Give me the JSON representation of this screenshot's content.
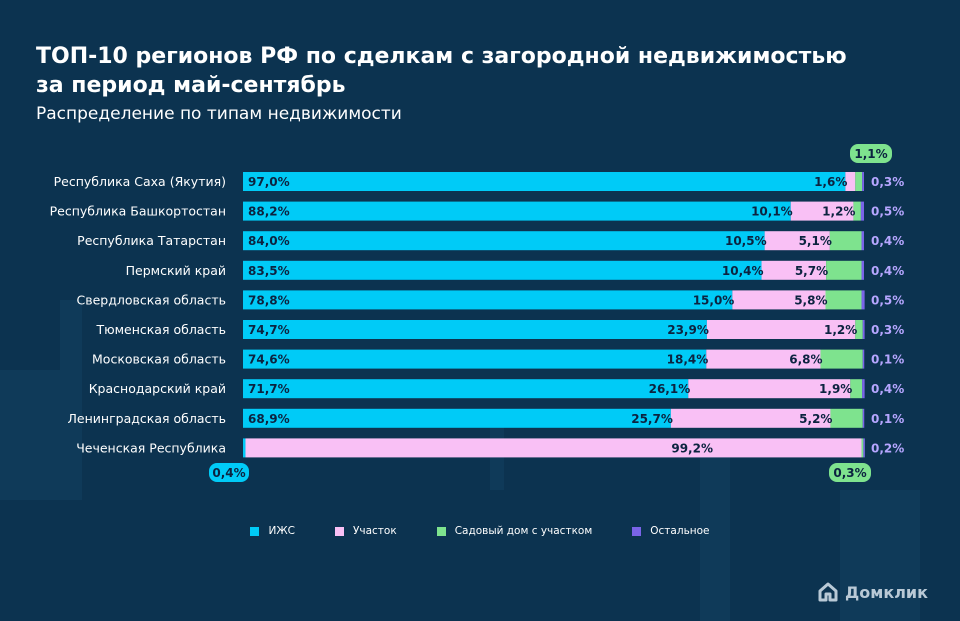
{
  "title_line1": "ТОП-10 регионов РФ по сделкам с загородной недвижимостью",
  "title_line2": "за период май-сентябрь",
  "subtitle": "Распределение по типам недвижимости",
  "brand": "Домклик",
  "colors": {
    "background": "#0c3350",
    "izhs": "#00cbf7",
    "uchastok": "#f9c0f5",
    "sad": "#7ee38e",
    "other": "#7a64e8",
    "label_dark": "#0c2340",
    "label_other": "#b6a6ff"
  },
  "legend": [
    {
      "label": "ИЖС",
      "color": "#00cbf7"
    },
    {
      "label": "Участок",
      "color": "#f9c0f5"
    },
    {
      "label": "Садовый дом с участком",
      "color": "#7ee38e"
    },
    {
      "label": "Остальное",
      "color": "#7a64e8"
    }
  ],
  "chart_data": {
    "type": "bar",
    "orientation": "horizontal",
    "stacked": true,
    "title": "ТОП-10 регионов РФ по сделкам с загородной недвижимостью за период май-сентябрь",
    "subtitle": "Распределение по типам недвижимости",
    "unit": "%",
    "categories": [
      "Республика Саха (Якутия)",
      "Республика Башкортостан",
      "Республика Татарстан",
      "Пермский край",
      "Свердловская область",
      "Тюменская область",
      "Московская область",
      "Краснодарский край",
      "Ленинградская область",
      "Чеченская Республика"
    ],
    "series": [
      {
        "name": "ИЖС",
        "values": [
          97.0,
          88.2,
          84.0,
          83.5,
          78.8,
          74.7,
          74.6,
          71.7,
          68.9,
          0.4
        ],
        "labels": [
          "97,0%",
          "88,2%",
          "84,0%",
          "83,5%",
          "78,8%",
          "74,7%",
          "74,6%",
          "71,7%",
          "68,9%",
          "0,4%"
        ]
      },
      {
        "name": "Участок",
        "values": [
          1.6,
          10.1,
          10.5,
          10.4,
          15.0,
          23.9,
          18.4,
          26.1,
          25.7,
          99.2
        ],
        "labels": [
          "1,6%",
          "10,1%",
          "10,5%",
          "10,4%",
          "15,0%",
          "23,9%",
          "18,4%",
          "26,1%",
          "25,7%",
          "99,2%"
        ]
      },
      {
        "name": "Садовый дом с участком",
        "values": [
          1.1,
          1.2,
          5.1,
          5.7,
          5.8,
          1.2,
          6.8,
          1.9,
          5.2,
          0.3
        ],
        "labels": [
          "1,1%",
          "1,2%",
          "5,1%",
          "5,7%",
          "5,8%",
          "1,2%",
          "6,8%",
          "1,9%",
          "5,2%",
          "0,3%"
        ]
      },
      {
        "name": "Остальное",
        "values": [
          0.3,
          0.5,
          0.4,
          0.4,
          0.5,
          0.3,
          0.1,
          0.4,
          0.1,
          0.2
        ],
        "labels": [
          "0,3%",
          "0,5%",
          "0,4%",
          "0,4%",
          "0,5%",
          "0,3%",
          "0,1%",
          "0,4%",
          "0,1%",
          "0,2%"
        ]
      }
    ],
    "xlim": [
      0,
      100
    ],
    "legend_position": "bottom"
  }
}
